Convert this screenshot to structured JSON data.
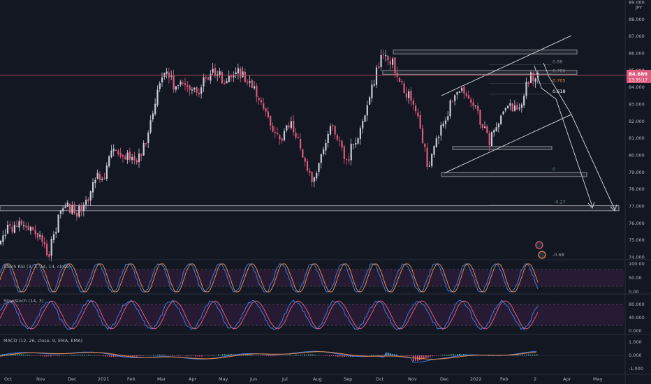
{
  "chart_data": [
    {
      "type": "candlestick",
      "symbol_label": "JPY",
      "price_axis": {
        "ylim": [
          73.6,
          89.2
        ],
        "ticks": [
          "74.000",
          "75.000",
          "76.000",
          "77.000",
          "78.000",
          "79.000",
          "80.000",
          "81.000",
          "82.000",
          "83.000",
          "84.000",
          "85.000",
          "86.000",
          "87.000",
          "88.000",
          "89.000"
        ]
      },
      "last_price": "84.689",
      "countdown": "13:35:17",
      "x_axis_labels": [
        "Oct",
        "Nov",
        "Dec",
        "2021",
        "Feb",
        "Mar",
        "Apr",
        "May",
        "Jun",
        "Jul",
        "Aug",
        "Sep",
        "Oct",
        "Nov",
        "Dec",
        "2022",
        "Feb",
        "2",
        "Apr",
        "May"
      ],
      "close_path": [
        {
          "x": 0,
          "y": 75.3
        },
        {
          "x": 8,
          "y": 75.8
        },
        {
          "x": 14,
          "y": 76.2
        },
        {
          "x": 18,
          "y": 75.4
        },
        {
          "x": 24,
          "y": 74.8
        },
        {
          "x": 27,
          "y": 74.1
        },
        {
          "x": 31,
          "y": 75.5
        },
        {
          "x": 35,
          "y": 76.8
        },
        {
          "x": 39,
          "y": 77.0
        },
        {
          "x": 43,
          "y": 76.5
        },
        {
          "x": 48,
          "y": 77.2
        },
        {
          "x": 55,
          "y": 78.6
        },
        {
          "x": 60,
          "y": 79.0
        },
        {
          "x": 65,
          "y": 80.4
        },
        {
          "x": 69,
          "y": 79.8
        },
        {
          "x": 73,
          "y": 80.2
        },
        {
          "x": 77,
          "y": 79.6
        },
        {
          "x": 82,
          "y": 80.5
        },
        {
          "x": 86,
          "y": 82.2
        },
        {
          "x": 90,
          "y": 83.6
        },
        {
          "x": 93,
          "y": 84.6
        },
        {
          "x": 96,
          "y": 84.9
        },
        {
          "x": 100,
          "y": 83.8
        },
        {
          "x": 104,
          "y": 84.5
        },
        {
          "x": 108,
          "y": 84.0
        },
        {
          "x": 112,
          "y": 83.6
        },
        {
          "x": 117,
          "y": 84.4
        },
        {
          "x": 122,
          "y": 85.0
        },
        {
          "x": 126,
          "y": 84.6
        },
        {
          "x": 130,
          "y": 84.3
        },
        {
          "x": 135,
          "y": 84.8
        },
        {
          "x": 140,
          "y": 84.6
        },
        {
          "x": 144,
          "y": 84.2
        },
        {
          "x": 148,
          "y": 83.2
        },
        {
          "x": 152,
          "y": 82.4
        },
        {
          "x": 156,
          "y": 81.6
        },
        {
          "x": 161,
          "y": 81.0
        },
        {
          "x": 165,
          "y": 81.8
        },
        {
          "x": 170,
          "y": 81.2
        },
        {
          "x": 174,
          "y": 79.8
        },
        {
          "x": 178,
          "y": 78.5
        },
        {
          "x": 182,
          "y": 79.2
        },
        {
          "x": 186,
          "y": 80.8
        },
        {
          "x": 190,
          "y": 81.8
        },
        {
          "x": 194,
          "y": 80.6
        },
        {
          "x": 198,
          "y": 79.6
        },
        {
          "x": 202,
          "y": 80.7
        },
        {
          "x": 206,
          "y": 81.5
        },
        {
          "x": 210,
          "y": 83.0
        },
        {
          "x": 214,
          "y": 84.5
        },
        {
          "x": 218,
          "y": 85.6
        },
        {
          "x": 222,
          "y": 85.9
        },
        {
          "x": 226,
          "y": 85.0
        },
        {
          "x": 230,
          "y": 83.9
        },
        {
          "x": 234,
          "y": 83.6
        },
        {
          "x": 238,
          "y": 82.8
        },
        {
          "x": 242,
          "y": 80.6
        },
        {
          "x": 245,
          "y": 79.3
        },
        {
          "x": 248,
          "y": 80.8
        },
        {
          "x": 252,
          "y": 81.6
        },
        {
          "x": 256,
          "y": 82.6
        },
        {
          "x": 260,
          "y": 83.4
        },
        {
          "x": 264,
          "y": 84.0
        },
        {
          "x": 268,
          "y": 83.2
        },
        {
          "x": 272,
          "y": 82.6
        },
        {
          "x": 276,
          "y": 81.6
        },
        {
          "x": 280,
          "y": 80.8
        },
        {
          "x": 284,
          "y": 81.7
        },
        {
          "x": 288,
          "y": 82.8
        },
        {
          "x": 292,
          "y": 83.1
        },
        {
          "x": 296,
          "y": 82.4
        },
        {
          "x": 300,
          "y": 83.8
        },
        {
          "x": 304,
          "y": 84.7
        }
      ],
      "stochrsi": {
        "label": "Stoch RSI (3, 3, 14, 14, close)",
        "ylim": [
          0,
          100
        ],
        "ticks": [
          "100.00",
          "50.00",
          "0.00"
        ],
        "bands": [
          80,
          20
        ]
      },
      "slowstoch": {
        "label": "SlowStoch (14, 3)",
        "ylim": [
          0,
          100
        ],
        "ticks": [
          "80.000",
          "40.000",
          "0.000"
        ],
        "bands": [
          80,
          20
        ]
      },
      "macd": {
        "label": "MACD (12, 26, close, 9, EMA, EMA)",
        "ylim": [
          -1.45,
          1.35
        ],
        "ticks": [
          "1.000",
          "0.000",
          "-1.000"
        ]
      },
      "grid": false,
      "colors": {
        "background": "#131722",
        "up": "#c8ccd6",
        "down": "#e05a7e",
        "blue": "#3d7be0",
        "orange": "#e5884a",
        "fib_box": "#8d8f96",
        "trend": "#c7c9cf",
        "price_line": "#a14350",
        "panel_fill": "#271a33"
      }
    }
  ],
  "annotations": {
    "fib_levels": [
      {
        "label": "0.88",
        "value": 85.33
      },
      {
        "label": "0.786",
        "value": 84.78
      },
      {
        "label": "0.705",
        "value": 84.22
      },
      {
        "label": "0.618",
        "value": 83.58
      },
      {
        "label": "0",
        "value": 79.0
      },
      {
        "label": "-0.27",
        "value": 77.06
      },
      {
        "label": "-0.68",
        "value": 73.96
      }
    ],
    "support_resistance_zones": [
      {
        "low": 85.95,
        "high": 86.18
      },
      {
        "low": 84.75,
        "high": 84.98
      },
      {
        "low": 80.32,
        "high": 80.5
      },
      {
        "low": 78.73,
        "high": 78.96
      },
      {
        "low": 76.72,
        "high": 77.02
      }
    ]
  }
}
